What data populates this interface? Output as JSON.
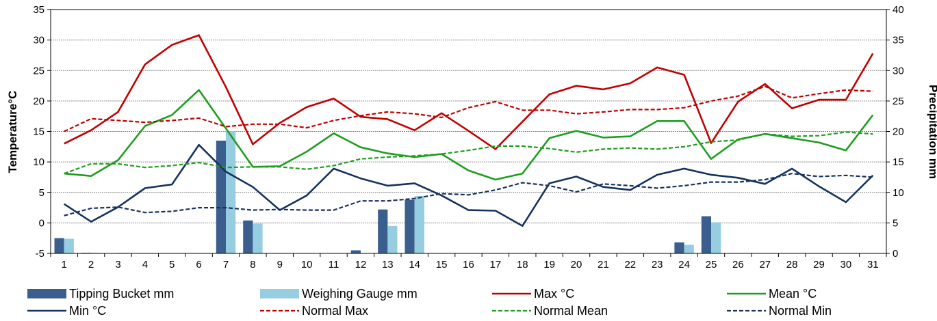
{
  "chart_data": {
    "type": "line",
    "categories": [
      "1",
      "2",
      "3",
      "4",
      "5",
      "6",
      "7",
      "8",
      "9",
      "10",
      "11",
      "12",
      "13",
      "14",
      "15",
      "16",
      "17",
      "18",
      "19",
      "20",
      "21",
      "22",
      "23",
      "24",
      "25",
      "26",
      "27",
      "28",
      "29",
      "30",
      "31"
    ],
    "xlabel": "",
    "ylabel": "Temperature°C",
    "y2label": "Precipitation mm",
    "ylim": [
      -5,
      35
    ],
    "y2lim": [
      0,
      40
    ],
    "yticks": [
      -5,
      0,
      5,
      10,
      15,
      20,
      25,
      30,
      35
    ],
    "y2ticks": [
      0,
      5,
      10,
      15,
      20,
      25,
      30,
      35,
      40
    ],
    "grid": true,
    "legend_position": "bottom",
    "bar_series": [
      {
        "name": "Tipping Bucket mm",
        "color": "#3A5F8F",
        "axis": "right",
        "values": [
          2.5,
          0.1,
          0,
          0,
          0,
          0,
          18.5,
          5.4,
          0,
          0,
          0,
          0.5,
          7.2,
          8.8,
          0,
          0,
          0,
          0,
          0,
          0,
          0,
          0,
          0,
          1.8,
          6.1,
          0,
          0,
          0,
          0,
          0,
          0
        ]
      },
      {
        "name": "Weighing Gauge mm",
        "color": "#96CDE0",
        "axis": "right",
        "values": [
          2.4,
          0.1,
          0.1,
          0,
          0,
          0,
          20.0,
          4.9,
          0,
          0,
          0,
          0,
          4.5,
          9.4,
          0,
          0,
          0,
          0,
          0,
          0,
          0,
          0,
          0,
          1.4,
          5.1,
          0,
          0,
          0,
          0,
          0,
          0
        ]
      }
    ],
    "line_series": [
      {
        "name": "Max °C",
        "color": "#C00000",
        "dashed": false,
        "axis": "left",
        "values": [
          13.0,
          15.2,
          18.2,
          26.0,
          29.2,
          30.8,
          22.3,
          12.9,
          16.4,
          19.0,
          20.4,
          17.4,
          17.0,
          15.2,
          18.0,
          15.1,
          12.1,
          16.6,
          21.1,
          22.5,
          21.9,
          22.9,
          25.5,
          24.3,
          13.1,
          19.9,
          22.8,
          18.8,
          20.2,
          20.2,
          27.8
        ]
      },
      {
        "name": "Mean °C",
        "color": "#1E9E1E",
        "dashed": false,
        "axis": "left",
        "values": [
          8.1,
          7.7,
          10.3,
          15.9,
          17.7,
          21.8,
          15.5,
          9.2,
          9.3,
          11.7,
          14.7,
          12.4,
          11.4,
          10.8,
          11.3,
          8.6,
          7.1,
          8.1,
          13.9,
          15.1,
          14.0,
          14.2,
          16.7,
          16.7,
          10.5,
          13.7,
          14.6,
          13.9,
          13.2,
          11.9,
          17.7
        ]
      },
      {
        "name": "Min °C",
        "color": "#16325E",
        "dashed": false,
        "axis": "left",
        "values": [
          3.1,
          0.2,
          2.6,
          5.7,
          6.3,
          12.8,
          8.4,
          5.9,
          2.1,
          4.5,
          8.9,
          7.3,
          6.1,
          6.5,
          4.5,
          2.1,
          2.0,
          -0.5,
          6.5,
          7.6,
          5.9,
          5.4,
          7.9,
          8.9,
          7.9,
          7.4,
          6.4,
          8.9,
          6.0,
          3.4,
          7.8
        ]
      },
      {
        "name": "Normal Max",
        "color": "#C00000",
        "dashed": true,
        "axis": "left",
        "values": [
          15.0,
          17.1,
          16.8,
          16.5,
          16.8,
          17.2,
          15.8,
          16.2,
          16.2,
          15.6,
          16.8,
          17.6,
          18.2,
          17.9,
          17.3,
          18.9,
          19.9,
          18.5,
          18.5,
          17.9,
          18.2,
          18.6,
          18.6,
          18.9,
          20.0,
          20.8,
          22.4,
          20.5,
          21.2,
          21.8,
          21.6
        ]
      },
      {
        "name": "Normal Mean",
        "color": "#1E9E1E",
        "dashed": true,
        "axis": "left",
        "values": [
          8.1,
          9.7,
          9.7,
          9.1,
          9.4,
          9.9,
          9.1,
          9.2,
          9.2,
          8.8,
          9.4,
          10.5,
          10.8,
          11.0,
          11.3,
          11.9,
          12.6,
          12.6,
          12.2,
          11.6,
          12.1,
          12.3,
          12.1,
          12.5,
          13.3,
          13.6,
          14.6,
          14.2,
          14.3,
          14.9,
          14.6
        ]
      },
      {
        "name": "Normal Min",
        "color": "#16325E",
        "dashed": true,
        "axis": "left",
        "values": [
          1.2,
          2.4,
          2.6,
          1.7,
          1.9,
          2.5,
          2.5,
          2.1,
          2.2,
          2.1,
          2.1,
          3.6,
          3.6,
          4.0,
          4.8,
          4.6,
          5.4,
          6.6,
          6.1,
          5.1,
          6.4,
          6.1,
          5.7,
          6.1,
          6.7,
          6.7,
          7.1,
          8.1,
          7.6,
          7.8,
          7.5
        ]
      }
    ],
    "legend_order": [
      "Tipping Bucket mm",
      "Weighing Gauge mm",
      "Max °C",
      "Mean °C",
      "Min °C",
      "Normal Max",
      "Normal Mean",
      "Normal Min"
    ]
  }
}
